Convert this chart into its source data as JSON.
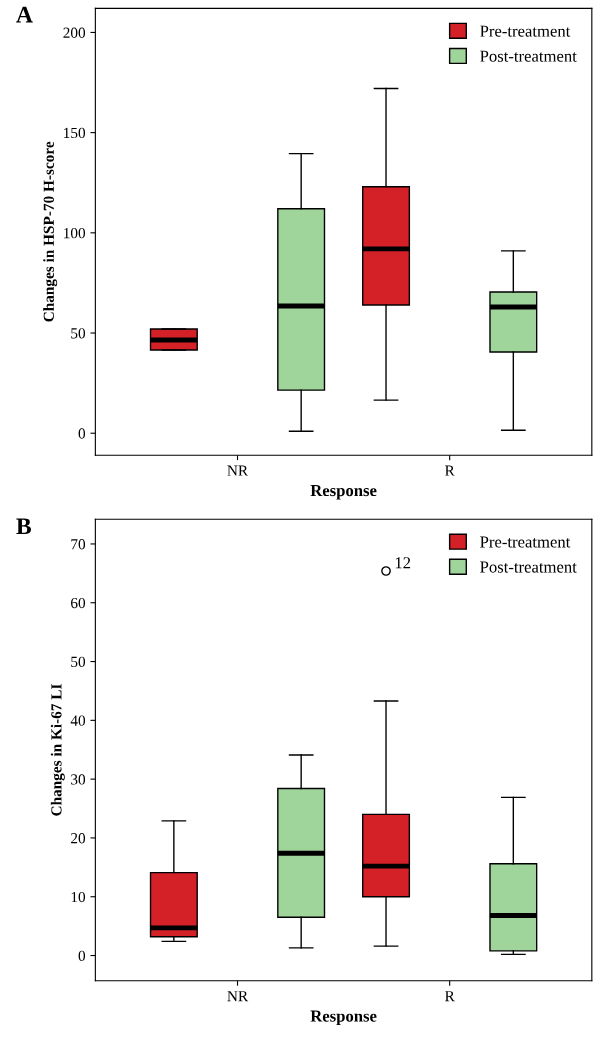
{
  "chart_data": [
    {
      "type": "box",
      "title": "A",
      "xlabel": "Response",
      "ylabel": "Changes in HSP-70 H-score",
      "categories": [
        "NR",
        "R"
      ],
      "ylim": [
        -11,
        212
      ],
      "yticks": [
        0,
        50,
        100,
        150,
        200
      ],
      "grid": false,
      "legend": "top right",
      "series": [
        {
          "name": "Pre-treatment",
          "color": "#d42027",
          "boxes": [
            {
              "low": 41.5,
              "q1": 41.5,
              "median": 46.5,
              "q3": 52,
              "high": 52
            },
            {
              "low": 16.5,
              "q1": 64,
              "median": 92,
              "q3": 123,
              "high": 172
            }
          ]
        },
        {
          "name": "Post-treatment",
          "color": "#9fd49a",
          "boxes": [
            {
              "low": 1,
              "q1": 21.5,
              "median": 63.5,
              "q3": 112,
              "high": 139.5
            },
            {
              "low": 1.5,
              "q1": 40.5,
              "median": 63,
              "q3": 70.5,
              "high": 91
            }
          ]
        }
      ]
    },
    {
      "type": "box",
      "title": "B",
      "xlabel": "Response",
      "ylabel": "Changes in Ki-67 LI",
      "categories": [
        "NR",
        "R"
      ],
      "ylim": [
        -4.3,
        74.2
      ],
      "yticks": [
        0,
        10,
        20,
        30,
        40,
        50,
        60,
        70
      ],
      "grid": false,
      "legend": "top right",
      "annotations": [
        "12"
      ],
      "series": [
        {
          "name": "Pre-treatment",
          "color": "#d42027",
          "boxes": [
            {
              "low": 2.4,
              "q1": 3.2,
              "median": 4.7,
              "q3": 14.1,
              "high": 22.9
            },
            {
              "low": 1.6,
              "q1": 10,
              "median": 15.2,
              "q3": 24,
              "high": 43.3,
              "outliers": [
                65.4
              ]
            }
          ]
        },
        {
          "name": "Post-treatment",
          "color": "#9fd49a",
          "boxes": [
            {
              "low": 1.3,
              "q1": 6.5,
              "median": 17.4,
              "q3": 28.4,
              "high": 34.1
            },
            {
              "low": 0.2,
              "q1": 0.8,
              "median": 6.8,
              "q3": 15.6,
              "high": 26.9
            }
          ]
        }
      ]
    }
  ]
}
